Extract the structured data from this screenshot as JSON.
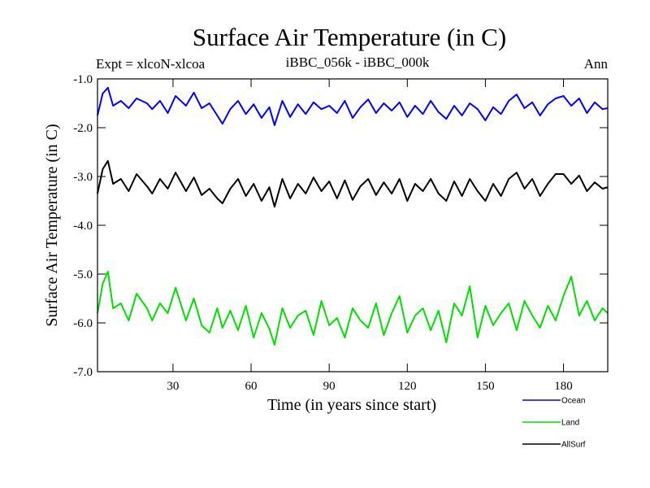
{
  "chart_data": {
    "type": "line",
    "title": "Surface Air Temperature (in C)",
    "subtitle_left": "Expt = xlcoN-xlcoa",
    "subtitle_center": "iBBC_056k - iBBC_000k",
    "subtitle_right": "Ann",
    "xlabel": "Time (in years since start)",
    "ylabel": "Surface Air Temperature (in C)",
    "xlim": [
      1,
      197
    ],
    "ylim": [
      -7.0,
      -1.0
    ],
    "xticks": [
      30,
      60,
      90,
      120,
      150,
      180
    ],
    "xtick_labels": [
      "30",
      "60",
      "90",
      "120",
      "150",
      "180"
    ],
    "yticks": [
      -1.0,
      -2.0,
      -3.0,
      -4.0,
      -5.0,
      -6.0,
      -7.0
    ],
    "ytick_labels": [
      "-1.0",
      "-2.0",
      "-3.0",
      "-4.0",
      "-5.0",
      "-6.0",
      "-7.0"
    ],
    "legend_placement": "bottom-right, outside plot",
    "series": [
      {
        "name": "Ocean",
        "color": "#0000ff",
        "x": [
          1,
          3,
          5,
          7,
          10,
          13,
          16,
          20,
          22,
          25,
          28,
          31,
          35,
          38,
          41,
          44,
          47,
          49,
          52,
          55,
          58,
          61,
          64,
          67,
          69,
          72,
          75,
          78,
          81,
          84,
          87,
          90,
          93,
          96,
          99,
          102,
          105,
          108,
          111,
          114,
          117,
          120,
          123,
          126,
          129,
          132,
          135,
          138,
          141,
          144,
          147,
          150,
          153,
          156,
          159,
          162,
          165,
          168,
          171,
          174,
          177,
          180,
          183,
          186,
          189,
          192,
          195,
          197
        ],
        "values": [
          -1.75,
          -1.3,
          -1.18,
          -1.55,
          -1.45,
          -1.6,
          -1.4,
          -1.5,
          -1.62,
          -1.45,
          -1.7,
          -1.35,
          -1.55,
          -1.28,
          -1.6,
          -1.5,
          -1.75,
          -1.92,
          -1.62,
          -1.45,
          -1.72,
          -1.52,
          -1.8,
          -1.58,
          -1.95,
          -1.45,
          -1.78,
          -1.52,
          -1.72,
          -1.48,
          -1.62,
          -1.55,
          -1.7,
          -1.45,
          -1.8,
          -1.58,
          -1.42,
          -1.7,
          -1.5,
          -1.65,
          -1.48,
          -1.78,
          -1.55,
          -1.72,
          -1.45,
          -1.68,
          -1.82,
          -1.55,
          -1.75,
          -1.5,
          -1.62,
          -1.85,
          -1.58,
          -1.72,
          -1.45,
          -1.32,
          -1.6,
          -1.48,
          -1.75,
          -1.52,
          -1.4,
          -1.35,
          -1.55,
          -1.4,
          -1.7,
          -1.48,
          -1.62,
          -1.6
        ]
      },
      {
        "name": "Land",
        "color": "#00e000",
        "x": [
          1,
          3,
          5,
          7,
          10,
          13,
          16,
          20,
          22,
          25,
          28,
          31,
          35,
          38,
          41,
          44,
          47,
          49,
          52,
          55,
          58,
          61,
          64,
          67,
          69,
          72,
          75,
          78,
          81,
          84,
          87,
          90,
          93,
          96,
          99,
          102,
          105,
          108,
          111,
          114,
          117,
          120,
          123,
          126,
          129,
          132,
          135,
          138,
          141,
          144,
          147,
          150,
          153,
          156,
          159,
          162,
          165,
          168,
          171,
          174,
          177,
          180,
          183,
          186,
          189,
          192,
          195,
          197
        ],
        "values": [
          -5.8,
          -5.2,
          -4.95,
          -5.7,
          -5.6,
          -5.95,
          -5.4,
          -5.7,
          -5.95,
          -5.6,
          -5.8,
          -5.28,
          -5.95,
          -5.5,
          -6.05,
          -6.2,
          -5.7,
          -6.1,
          -5.75,
          -6.15,
          -5.65,
          -6.3,
          -5.8,
          -6.12,
          -6.45,
          -5.7,
          -6.1,
          -5.85,
          -5.75,
          -6.25,
          -5.55,
          -6.05,
          -5.9,
          -6.3,
          -5.7,
          -5.95,
          -6.1,
          -5.6,
          -6.25,
          -5.8,
          -5.45,
          -6.2,
          -5.85,
          -5.7,
          -6.15,
          -5.75,
          -6.4,
          -5.6,
          -5.85,
          -5.25,
          -6.3,
          -5.65,
          -6.05,
          -5.8,
          -5.6,
          -6.15,
          -5.55,
          -5.85,
          -6.1,
          -5.65,
          -5.95,
          -5.45,
          -5.05,
          -5.85,
          -5.55,
          -5.95,
          -5.7,
          -5.8
        ]
      },
      {
        "name": "AllSurf",
        "color": "#000000",
        "x": [
          1,
          3,
          5,
          7,
          10,
          13,
          16,
          20,
          22,
          25,
          28,
          31,
          35,
          38,
          41,
          44,
          47,
          49,
          52,
          55,
          58,
          61,
          64,
          67,
          69,
          72,
          75,
          78,
          81,
          84,
          87,
          90,
          93,
          96,
          99,
          102,
          105,
          108,
          111,
          114,
          117,
          120,
          123,
          126,
          129,
          132,
          135,
          138,
          141,
          144,
          147,
          150,
          153,
          156,
          159,
          162,
          165,
          168,
          171,
          174,
          177,
          180,
          183,
          186,
          189,
          192,
          195,
          197
        ],
        "values": [
          -3.35,
          -2.85,
          -2.68,
          -3.15,
          -3.05,
          -3.3,
          -2.95,
          -3.2,
          -3.35,
          -3.05,
          -3.25,
          -2.92,
          -3.3,
          -3.02,
          -3.38,
          -3.25,
          -3.45,
          -3.55,
          -3.25,
          -3.05,
          -3.4,
          -3.15,
          -3.5,
          -3.22,
          -3.62,
          -3.05,
          -3.45,
          -3.15,
          -3.35,
          -3.02,
          -3.3,
          -3.1,
          -3.45,
          -3.08,
          -3.48,
          -3.2,
          -3.05,
          -3.38,
          -3.12,
          -3.35,
          -3.05,
          -3.5,
          -3.15,
          -3.3,
          -3.05,
          -3.35,
          -3.5,
          -3.1,
          -3.4,
          -3.05,
          -3.3,
          -3.5,
          -3.15,
          -3.4,
          -3.05,
          -2.92,
          -3.25,
          -3.05,
          -3.4,
          -3.15,
          -2.95,
          -2.95,
          -3.15,
          -2.98,
          -3.3,
          -3.12,
          -3.25,
          -3.22
        ]
      }
    ]
  }
}
